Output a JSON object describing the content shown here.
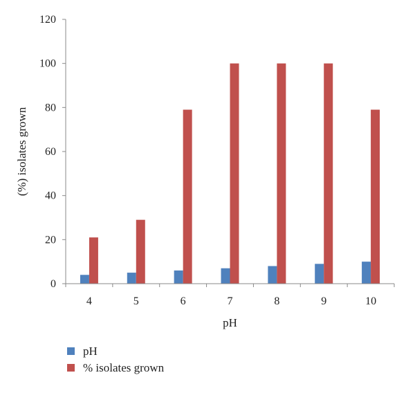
{
  "chart_data": {
    "type": "bar",
    "xlabel": "pH",
    "ylabel": "(%) isolates grown",
    "categories": [
      "4",
      "5",
      "6",
      "7",
      "8",
      "9",
      "10"
    ],
    "ylim": [
      0,
      120
    ],
    "yticks": [
      "0",
      "20",
      "40",
      "60",
      "80",
      "100",
      "120"
    ],
    "grid": false,
    "legend_position": "bottom-left",
    "series": [
      {
        "name": "pH",
        "color": "#4F81BD",
        "values": [
          4,
          5,
          6,
          7,
          8,
          9,
          10
        ]
      },
      {
        "name": "% isolates grown",
        "color": "#C0504D",
        "values": [
          21,
          29,
          79,
          100,
          100,
          100,
          79
        ]
      }
    ]
  }
}
